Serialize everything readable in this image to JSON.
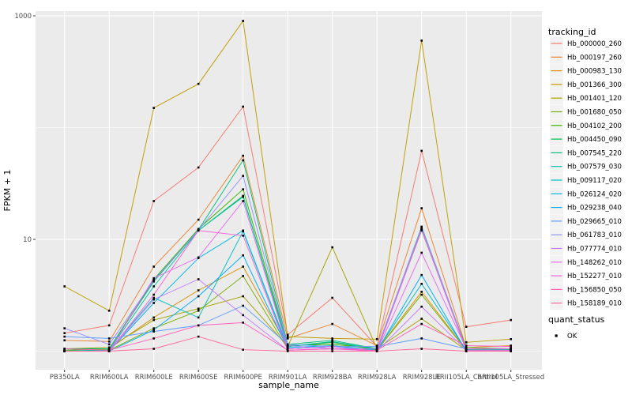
{
  "figure": {
    "background": "#FFFFFF",
    "panel_background": "#EBEBEB",
    "grid_color": "#FFFFFF",
    "tick_color": "#333333",
    "tick_label_color": "#4D4D4D",
    "title_color": "#000000",
    "point_color": "#000000",
    "legend_key_background": "#F2F2F2"
  },
  "chart_data": {
    "type": "line",
    "title": "",
    "xlabel": "sample_name",
    "ylabel": "FPKM + 1",
    "y_scale": "log10",
    "grid": true,
    "legend_position": "right",
    "y_ticks": [
      {
        "label": "10",
        "value": 10
      },
      {
        "label": "1000",
        "value": 1000
      }
    ],
    "y_minor_breaks": [
      1,
      100
    ],
    "ylim": [
      0.68,
      1100
    ],
    "categories": [
      "PB350LA",
      "RRIM600LA",
      "RRIM600LE",
      "RRIM600SE",
      "RRIM600PE",
      "RRIM901LA",
      "RRIM928BA",
      "RRIM928LA",
      "RRIM928LE",
      "RRII105LA_Control",
      "RRII105LA_Stressed"
    ],
    "series": [
      {
        "name": "Hb_000000_260",
        "color": "#F8766D",
        "values": [
          1.45,
          1.7,
          22,
          44,
          154,
          1.4,
          3.0,
          1.1,
          62,
          1.65,
          1.9
        ]
      },
      {
        "name": "Hb_000197_260",
        "color": "#EA8331",
        "values": [
          1.25,
          1.22,
          5.7,
          15,
          56,
          1.3,
          1.75,
          1.12,
          19,
          1.08,
          1.12
        ]
      },
      {
        "name": "Hb_000983_130",
        "color": "#D89000",
        "values": [
          1.02,
          1.05,
          2.0,
          3.5,
          5.7,
          1.1,
          1.2,
          1.02,
          3.4,
          1.02,
          1.05
        ]
      },
      {
        "name": "Hb_001366_300",
        "color": "#C09B00",
        "values": [
          3.8,
          2.3,
          150,
          246,
          900,
          1.35,
          1.3,
          1.28,
          600,
          1.2,
          1.28
        ]
      },
      {
        "name": "Hb_001401_120",
        "color": "#A3A500",
        "values": [
          1.05,
          1.08,
          1.9,
          2.4,
          3.1,
          1.1,
          8.5,
          1.05,
          1.95,
          1.02,
          1.05
        ]
      },
      {
        "name": "Hb_001680_050",
        "color": "#7CAE00",
        "values": [
          1.0,
          1.02,
          1.6,
          2.3,
          4.7,
          1.05,
          1.1,
          1.02,
          3.2,
          1.02,
          1.02
        ]
      },
      {
        "name": "Hb_004102_200",
        "color": "#39B600",
        "values": [
          1.02,
          1.05,
          4.4,
          12.4,
          28,
          1.12,
          1.15,
          1.05,
          12,
          1.08,
          1.05
        ]
      },
      {
        "name": "Hb_004450_090",
        "color": "#00BB4E",
        "values": [
          1.0,
          1.03,
          4.3,
          12,
          24.5,
          1.1,
          1.2,
          1.03,
          13,
          1.05,
          1.03
        ]
      },
      {
        "name": "Hb_007545_220",
        "color": "#00BF7D",
        "values": [
          1.05,
          1.05,
          4.2,
          12.2,
          51,
          1.15,
          1.25,
          1.05,
          12.6,
          1.05,
          1.05
        ]
      },
      {
        "name": "Hb_007579_030",
        "color": "#00C1A3",
        "values": [
          1.0,
          1.02,
          3.8,
          12,
          24,
          1.1,
          1.22,
          1.04,
          12.4,
          1.04,
          1.04
        ]
      },
      {
        "name": "Hb_009117_020",
        "color": "#00BFC4",
        "values": [
          1.0,
          1.02,
          3.0,
          2.0,
          11.8,
          1.05,
          1.1,
          1.02,
          4.0,
          1.02,
          1.02
        ]
      },
      {
        "name": "Hb_026124_020",
        "color": "#00B8E7",
        "values": [
          1.0,
          1.0,
          2.7,
          6.8,
          12,
          1.08,
          1.12,
          1.02,
          12.2,
          1.02,
          1.02
        ]
      },
      {
        "name": "Hb_029238_040",
        "color": "#00ACFC",
        "values": [
          1.0,
          1.0,
          1.55,
          3.1,
          7.2,
          1.05,
          1.1,
          1.0,
          4.8,
          1.0,
          1.0
        ]
      },
      {
        "name": "Hb_029665_010",
        "color": "#619CFF",
        "values": [
          1.35,
          1.3,
          1.5,
          1.7,
          2.55,
          1.15,
          1.1,
          1.1,
          1.3,
          1.05,
          1.05
        ]
      },
      {
        "name": "Hb_061783_010",
        "color": "#9590FF",
        "values": [
          1.6,
          1.15,
          4.3,
          12.1,
          37,
          1.12,
          1.05,
          1.05,
          12.8,
          1.05,
          1.05
        ]
      },
      {
        "name": "Hb_077774_010",
        "color": "#C77CFF",
        "values": [
          1.0,
          1.0,
          2.9,
          4.4,
          2.1,
          1.02,
          1.05,
          1.0,
          2.5,
          1.02,
          1.02
        ]
      },
      {
        "name": "Hb_148262_010",
        "color": "#E76BF3",
        "values": [
          1.0,
          1.0,
          4.5,
          6.9,
          22,
          1.05,
          1.1,
          1.0,
          7.6,
          1.05,
          1.05
        ]
      },
      {
        "name": "Hb_152277_010",
        "color": "#FA62DB",
        "values": [
          1.0,
          1.0,
          3.2,
          12,
          10.8,
          1.02,
          1.05,
          1.0,
          12.2,
          1.02,
          1.02
        ]
      },
      {
        "name": "Hb_156850_050",
        "color": "#FF62BC",
        "values": [
          1.05,
          1.02,
          1.3,
          1.7,
          1.8,
          1.02,
          1.05,
          1.02,
          1.75,
          1.12,
          1.1
        ]
      },
      {
        "name": "Hb_158189_010",
        "color": "#FF6A98",
        "values": [
          1.0,
          1.0,
          1.05,
          1.35,
          1.03,
          1.0,
          1.0,
          1.0,
          1.05,
          1.0,
          1.0
        ]
      }
    ],
    "legend": {
      "series_title": "tracking_id",
      "status_title": "quant_status",
      "status_items": [
        {
          "label": "OK"
        }
      ]
    }
  }
}
